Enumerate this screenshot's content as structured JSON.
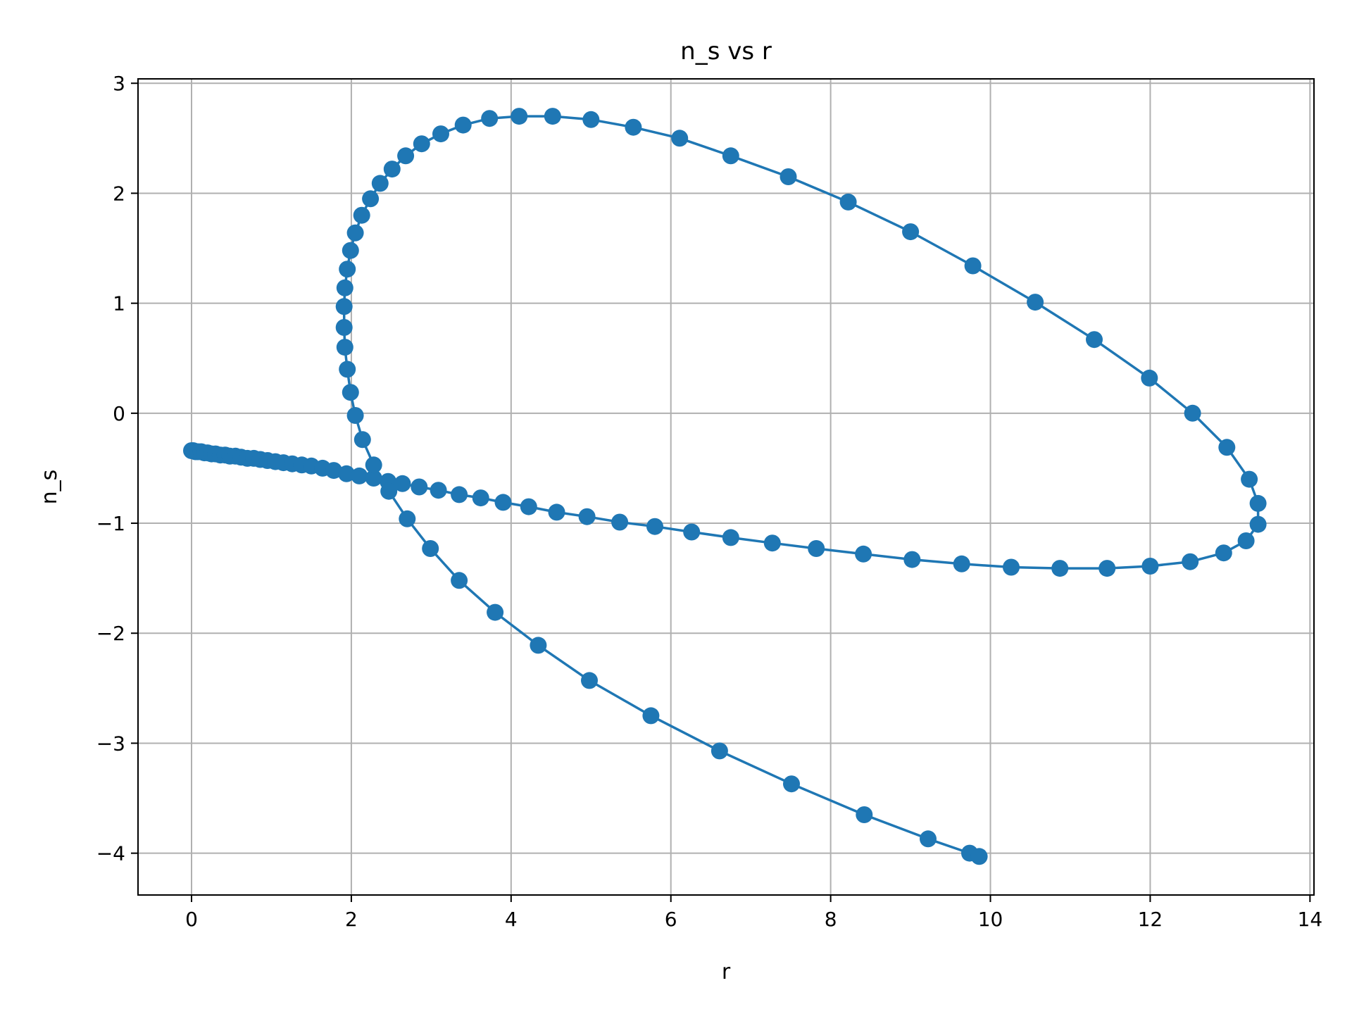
{
  "chart_data": {
    "type": "line",
    "title": "n_s vs r",
    "xlabel": "r",
    "ylabel": "n_s",
    "xlim": [
      -0.67,
      14.05
    ],
    "ylim": [
      -4.38,
      3.04
    ],
    "xticks": [
      0,
      2,
      4,
      6,
      8,
      10,
      12,
      14
    ],
    "yticks": [
      -4,
      -3,
      -2,
      -1,
      0,
      1,
      2,
      3
    ],
    "xtick_labels": [
      "0",
      "2",
      "4",
      "6",
      "8",
      "10",
      "12",
      "14"
    ],
    "ytick_labels": [
      "−4",
      "−3",
      "−2",
      "−1",
      "0",
      "1",
      "2",
      "3"
    ],
    "grid": true,
    "marker": "circle",
    "color": "#1f77b4",
    "series": [
      {
        "x": [
          0.0,
          0.02,
          0.05,
          0.08,
          0.12,
          0.16,
          0.2,
          0.25,
          0.3,
          0.36,
          0.42,
          0.48,
          0.55,
          0.62,
          0.7,
          0.78,
          0.86,
          0.95,
          1.05,
          1.15,
          1.26,
          1.38,
          1.5,
          1.64,
          1.78,
          1.94,
          2.1,
          2.28,
          2.46,
          2.64,
          2.85,
          3.09,
          3.35,
          3.62,
          3.9,
          4.22,
          4.57,
          4.95,
          5.36,
          5.8,
          6.26,
          6.75,
          7.27,
          7.82,
          8.41,
          9.02,
          9.64,
          10.26,
          10.87,
          11.46,
          12.0,
          12.5,
          12.92,
          13.2,
          13.35,
          13.35,
          13.24,
          12.96,
          12.53,
          11.99,
          11.3,
          10.56,
          9.78,
          9.0,
          8.22,
          7.47,
          6.75,
          6.11,
          5.53,
          5.0,
          4.52,
          4.1,
          3.73,
          3.4,
          3.12,
          2.88,
          2.68,
          2.51,
          2.36,
          2.24,
          2.13,
          2.05,
          1.99,
          1.95,
          1.92,
          1.91,
          1.91,
          1.92,
          1.95,
          1.99,
          2.05,
          2.14,
          2.28,
          2.47,
          2.7,
          2.99,
          3.35,
          3.8,
          4.34,
          4.98,
          5.75,
          6.61,
          7.51,
          8.42,
          9.22,
          9.74,
          9.86
        ],
        "y": [
          -0.34,
          -0.34,
          -0.35,
          -0.35,
          -0.35,
          -0.36,
          -0.36,
          -0.37,
          -0.37,
          -0.38,
          -0.38,
          -0.39,
          -0.39,
          -0.4,
          -0.41,
          -0.41,
          -0.42,
          -0.43,
          -0.44,
          -0.45,
          -0.46,
          -0.47,
          -0.48,
          -0.5,
          -0.52,
          -0.55,
          -0.57,
          -0.59,
          -0.62,
          -0.64,
          -0.67,
          -0.7,
          -0.74,
          -0.77,
          -0.81,
          -0.85,
          -0.9,
          -0.94,
          -0.99,
          -1.03,
          -1.08,
          -1.13,
          -1.18,
          -1.23,
          -1.28,
          -1.33,
          -1.37,
          -1.4,
          -1.41,
          -1.41,
          -1.39,
          -1.35,
          -1.27,
          -1.16,
          -1.01,
          -0.82,
          -0.6,
          -0.31,
          0.0,
          0.32,
          0.67,
          1.01,
          1.34,
          1.65,
          1.92,
          2.15,
          2.34,
          2.5,
          2.6,
          2.67,
          2.7,
          2.7,
          2.68,
          2.62,
          2.54,
          2.45,
          2.34,
          2.22,
          2.09,
          1.95,
          1.8,
          1.64,
          1.48,
          1.31,
          1.14,
          0.97,
          0.78,
          0.6,
          0.4,
          0.19,
          -0.02,
          -0.24,
          -0.47,
          -0.71,
          -0.96,
          -1.23,
          -1.52,
          -1.81,
          -2.11,
          -2.43,
          -2.75,
          -3.07,
          -3.37,
          -3.65,
          -3.87,
          -4.0,
          -4.03
        ]
      }
    ]
  }
}
